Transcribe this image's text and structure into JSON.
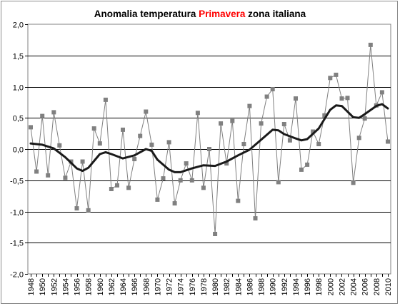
{
  "chart_data": {
    "type": "line",
    "title": {
      "prefix": "Anomalia temperatura ",
      "highlight": "Primavera",
      "suffix": " zona italiana",
      "highlight_color": "#ff0000"
    },
    "xlabel": "",
    "ylabel": "",
    "ylim": [
      -2.0,
      2.0
    ],
    "y_ticks": [
      "2,0",
      "1,5",
      "1,0",
      "0,5",
      "0,0",
      "-0,5",
      "-1,0",
      "-1,5",
      "-2,0"
    ],
    "y_tick_values": [
      2.0,
      1.5,
      1.0,
      0.5,
      0.0,
      -0.5,
      -1.0,
      -1.5,
      -2.0
    ],
    "x_tick_labels": [
      "1948",
      "1950",
      "1952",
      "1954",
      "1956",
      "1958",
      "1960",
      "1962",
      "1964",
      "1966",
      "1968",
      "1970",
      "1972",
      "1974",
      "1976",
      "1978",
      "1980",
      "1982",
      "1984",
      "1986",
      "1988",
      "1990",
      "1992",
      "1994",
      "1996",
      "1998",
      "2000",
      "2002",
      "2004",
      "2006",
      "2008",
      "2010"
    ],
    "grid": true,
    "legend": "none",
    "series": [
      {
        "kind": "annual anomaly",
        "color": "#808080",
        "marker": "square",
        "x": [
          1948,
          1949,
          1950,
          1951,
          1952,
          1953,
          1954,
          1955,
          1956,
          1957,
          1958,
          1959,
          1960,
          1961,
          1962,
          1963,
          1964,
          1965,
          1966,
          1967,
          1968,
          1969,
          1970,
          1971,
          1972,
          1973,
          1974,
          1975,
          1976,
          1977,
          1978,
          1979,
          1980,
          1981,
          1982,
          1983,
          1984,
          1985,
          1986,
          1987,
          1988,
          1989,
          1990,
          1991,
          1992,
          1993,
          1994,
          1995,
          1996,
          1997,
          1998,
          1999,
          2000,
          2001,
          2002,
          2003,
          2004,
          2005,
          2006,
          2007,
          2008,
          2009,
          2010
        ],
        "values": [
          0.35,
          -0.36,
          0.53,
          -0.42,
          0.59,
          0.06,
          -0.46,
          -0.2,
          -0.95,
          -0.2,
          -0.98,
          0.33,
          0.09,
          0.79,
          -0.64,
          -0.58,
          0.31,
          -0.62,
          -0.16,
          0.21,
          0.6,
          0.07,
          -0.81,
          -0.47,
          0.11,
          -0.87,
          -0.5,
          -0.23,
          -0.5,
          0.58,
          -0.62,
          0.0,
          -1.36,
          0.41,
          -0.23,
          0.45,
          -0.83,
          0.08,
          0.69,
          -1.11,
          0.41,
          0.84,
          0.96,
          -0.53,
          0.4,
          0.14,
          0.81,
          -0.33,
          -0.25,
          0.28,
          0.08,
          0.54,
          1.14,
          1.19,
          0.81,
          0.82,
          -0.54,
          0.18,
          0.49,
          1.67,
          0.7,
          0.91,
          0.12
        ]
      },
      {
        "kind": "smoothed trend",
        "color": "#1a1a1a",
        "x": [
          1948,
          1950,
          1952,
          1954,
          1956,
          1957,
          1958,
          1960,
          1961,
          1962,
          1964,
          1966,
          1968,
          1969,
          1970,
          1972,
          1973,
          1974,
          1976,
          1978,
          1980,
          1982,
          1984,
          1986,
          1988,
          1990,
          1991,
          1992,
          1994,
          1995,
          1996,
          1998,
          2000,
          2001,
          2002,
          2004,
          2005,
          2006,
          2008,
          2009,
          2010
        ],
        "values": [
          0.09,
          0.07,
          0.01,
          -0.13,
          -0.31,
          -0.35,
          -0.3,
          -0.08,
          -0.05,
          -0.08,
          -0.15,
          -0.1,
          0.0,
          -0.03,
          -0.17,
          -0.33,
          -0.37,
          -0.37,
          -0.31,
          -0.26,
          -0.27,
          -0.2,
          -0.1,
          -0.01,
          0.15,
          0.31,
          0.3,
          0.24,
          0.17,
          0.14,
          0.16,
          0.33,
          0.63,
          0.7,
          0.69,
          0.51,
          0.5,
          0.56,
          0.69,
          0.72,
          0.65
        ]
      }
    ]
  }
}
